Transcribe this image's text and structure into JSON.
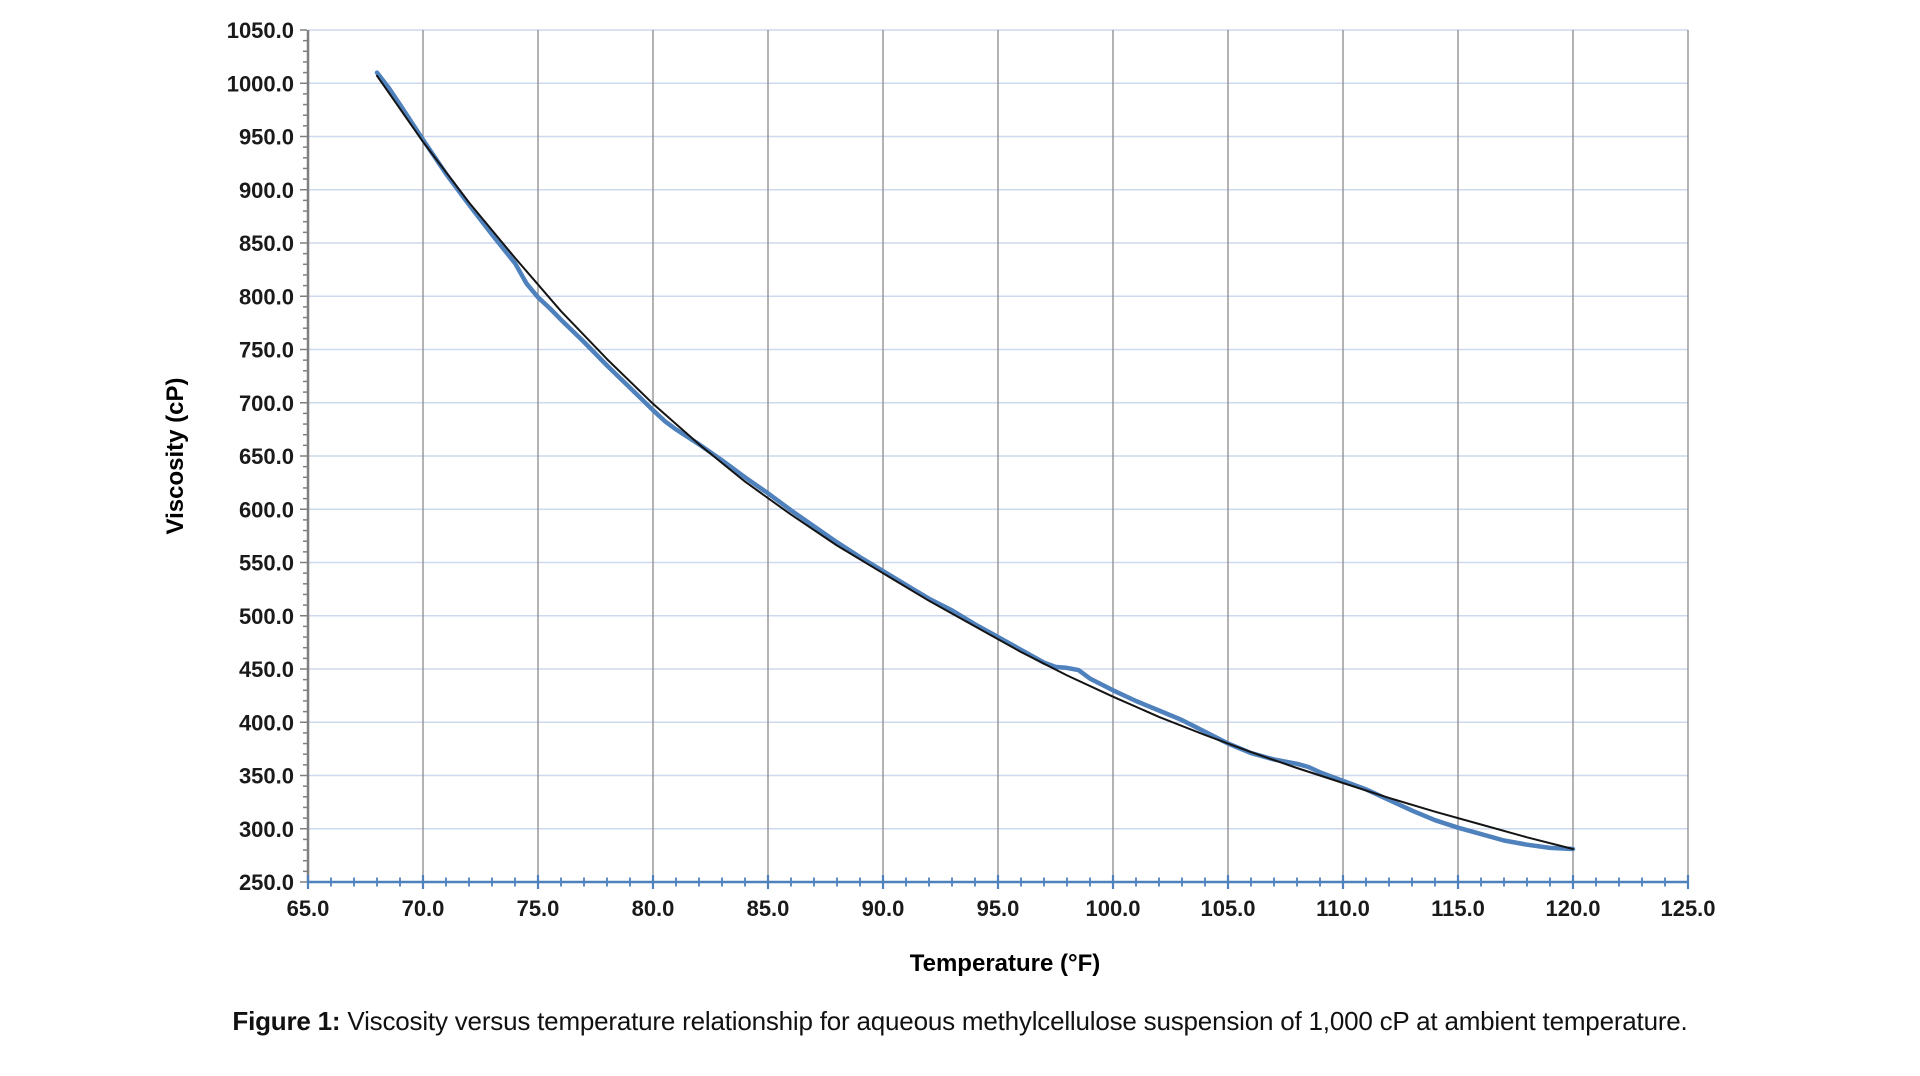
{
  "page": {
    "background": "#ffffff"
  },
  "chart_data": {
    "type": "line",
    "title": "",
    "xlabel": "Temperature (°F)",
    "ylabel": "Viscosity (cP)",
    "grid": true,
    "legend": {
      "visible": false
    },
    "x_axis": {
      "min": 65,
      "max": 125,
      "major_step": 5,
      "minor_step": 1,
      "ticks": [
        {
          "value": 65,
          "label": "65.0"
        },
        {
          "value": 70,
          "label": "70.0"
        },
        {
          "value": 75,
          "label": "75.0"
        },
        {
          "value": 80,
          "label": "80.0"
        },
        {
          "value": 85,
          "label": "85.0"
        },
        {
          "value": 90,
          "label": "90.0"
        },
        {
          "value": 95,
          "label": "95.0"
        },
        {
          "value": 100,
          "label": "100.0"
        },
        {
          "value": 105,
          "label": "105.0"
        },
        {
          "value": 110,
          "label": "110.0"
        },
        {
          "value": 115,
          "label": "115.0"
        },
        {
          "value": 120,
          "label": "120.0"
        },
        {
          "value": 125,
          "label": "125.0"
        }
      ]
    },
    "y_axis": {
      "min": 250,
      "max": 1050,
      "major_step": 50,
      "minor_step": 10,
      "ticks": [
        {
          "value": 250,
          "label": "250.0"
        },
        {
          "value": 300,
          "label": "300.0"
        },
        {
          "value": 350,
          "label": "350.0"
        },
        {
          "value": 400,
          "label": "400.0"
        },
        {
          "value": 450,
          "label": "450.0"
        },
        {
          "value": 500,
          "label": "500.0"
        },
        {
          "value": 550,
          "label": "550.0"
        },
        {
          "value": 600,
          "label": "600.0"
        },
        {
          "value": 650,
          "label": "650.0"
        },
        {
          "value": 700,
          "label": "700.0"
        },
        {
          "value": 750,
          "label": "750.0"
        },
        {
          "value": 800,
          "label": "800.0"
        },
        {
          "value": 850,
          "label": "850.0"
        },
        {
          "value": 900,
          "label": "900.0"
        },
        {
          "value": 950,
          "label": "950.0"
        },
        {
          "value": 1000,
          "label": "1000.0"
        },
        {
          "value": 1050,
          "label": "1050.0"
        }
      ]
    },
    "colors": {
      "h_gridline": "#cdd9ee",
      "v_gridline": "#8a8a8a",
      "y_axis_line": "#7f7f7f",
      "x_axis_line": "#4f81bd",
      "tick_label": "#1a1a1a"
    },
    "series": [
      {
        "name": "viscosity-data",
        "color": "#4f81bd",
        "width": 4.5,
        "points": [
          [
            68,
            1010
          ],
          [
            68.5,
            996
          ],
          [
            69,
            980
          ],
          [
            70,
            947
          ],
          [
            71,
            915
          ],
          [
            72,
            886
          ],
          [
            73,
            858
          ],
          [
            74,
            831
          ],
          [
            74.5,
            812
          ],
          [
            75,
            799
          ],
          [
            75.5,
            789
          ],
          [
            76,
            778
          ],
          [
            77,
            757
          ],
          [
            78,
            735
          ],
          [
            79,
            714
          ],
          [
            80,
            693
          ],
          [
            80.5,
            683
          ],
          [
            81,
            675
          ],
          [
            82,
            661
          ],
          [
            83,
            646
          ],
          [
            84,
            630
          ],
          [
            85,
            615
          ],
          [
            86,
            599
          ],
          [
            87,
            584
          ],
          [
            88,
            569
          ],
          [
            89,
            555
          ],
          [
            90,
            542
          ],
          [
            91,
            529
          ],
          [
            92,
            516
          ],
          [
            93,
            505
          ],
          [
            94,
            492
          ],
          [
            95,
            480
          ],
          [
            96,
            468
          ],
          [
            97,
            456
          ],
          [
            97.5,
            452
          ],
          [
            98,
            451
          ],
          [
            98.5,
            449
          ],
          [
            99,
            441
          ],
          [
            100,
            430
          ],
          [
            101,
            420
          ],
          [
            102,
            411
          ],
          [
            103,
            402
          ],
          [
            104,
            391
          ],
          [
            105,
            380
          ],
          [
            106,
            371
          ],
          [
            107,
            365
          ],
          [
            108,
            361
          ],
          [
            108.5,
            358
          ],
          [
            109,
            353
          ],
          [
            110,
            345
          ],
          [
            111,
            337
          ],
          [
            112,
            327
          ],
          [
            113,
            317
          ],
          [
            114,
            308
          ],
          [
            115,
            301
          ],
          [
            116,
            295
          ],
          [
            117,
            289
          ],
          [
            118,
            285
          ],
          [
            119,
            282
          ],
          [
            120,
            281
          ]
        ]
      },
      {
        "name": "trendline",
        "color": "#141414",
        "width": 2,
        "points": [
          [
            68,
            1007
          ],
          [
            70,
            945
          ],
          [
            72,
            888
          ],
          [
            74,
            836
          ],
          [
            76,
            786
          ],
          [
            78,
            741
          ],
          [
            80,
            699
          ],
          [
            82,
            661
          ],
          [
            84,
            626
          ],
          [
            86,
            595
          ],
          [
            88,
            566
          ],
          [
            90,
            540
          ],
          [
            92,
            514
          ],
          [
            94,
            490
          ],
          [
            96,
            466
          ],
          [
            98,
            444
          ],
          [
            100,
            424
          ],
          [
            102,
            405
          ],
          [
            104,
            388
          ],
          [
            106,
            372
          ],
          [
            108,
            357
          ],
          [
            110,
            343
          ],
          [
            112,
            329
          ],
          [
            114,
            316
          ],
          [
            116,
            304
          ],
          [
            118,
            292
          ],
          [
            120,
            281
          ]
        ]
      }
    ]
  },
  "caption": {
    "label": "Figure 1:",
    "text": " Viscosity versus temperature relationship for aqueous methylcellulose suspension of 1,000 cP at ambient temperature."
  }
}
